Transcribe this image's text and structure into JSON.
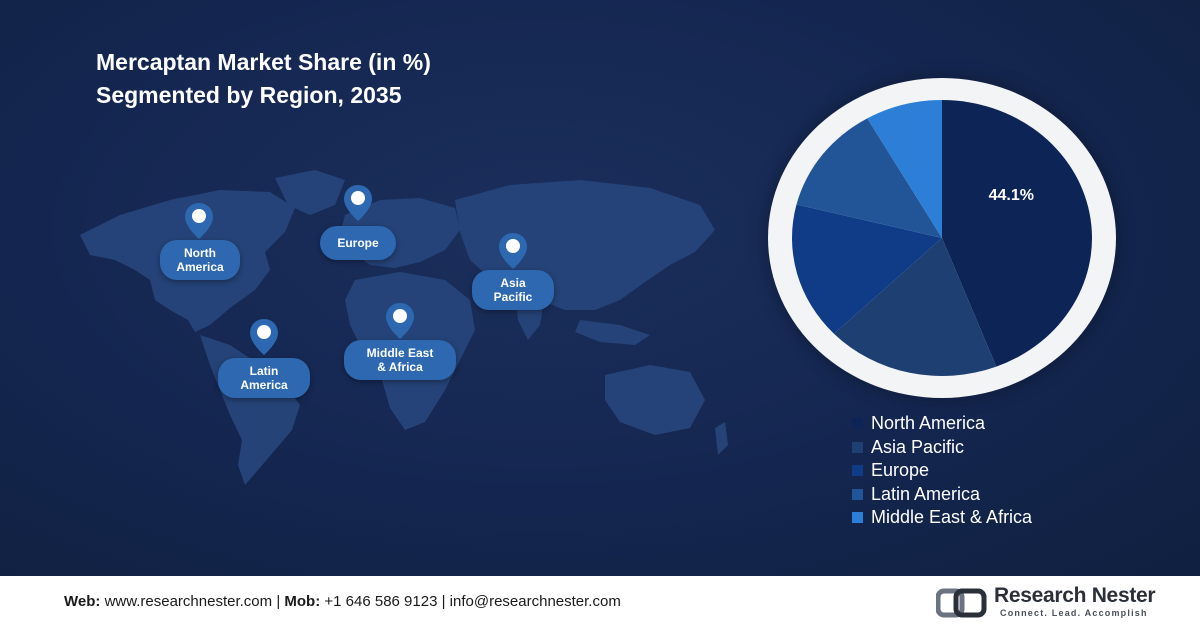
{
  "title": {
    "line1": "Mercaptan Market Share (in %)",
    "line2": "Segmented by Region, 2035"
  },
  "map": {
    "pins": [
      {
        "lines": [
          "North",
          "America"
        ]
      },
      {
        "lines": [
          "Europe"
        ]
      },
      {
        "lines": [
          "Asia",
          "Pacific"
        ]
      },
      {
        "lines": [
          "Latin",
          "America"
        ]
      },
      {
        "lines": [
          "Middle East",
          "& Africa"
        ]
      }
    ]
  },
  "chart_data": {
    "type": "pie",
    "title": "",
    "categories": [
      "North America",
      "Asia Pacific",
      "Europe",
      "Latin America",
      "Middle East & Africa"
    ],
    "values": [
      44.1,
      18.7,
      16.1,
      12.8,
      8.3
    ],
    "labels": [
      "44.1%",
      "",
      "",
      "",
      ""
    ],
    "colors": [
      "#0d2456",
      "#1d3f72",
      "#0f3b87",
      "#215597",
      "#2c7ed6"
    ],
    "legend_position": "bottom-right"
  },
  "footer": {
    "web_label": "Web:",
    "web_value": "www.researchnester.com",
    "sep1": "|",
    "mob_label": "Mob:",
    "mob_value": "+1 646 586 9123",
    "sep2": "|",
    "email": "info@researchnester.com"
  },
  "logo": {
    "name": "Research Nester",
    "tagline": "Connect. Lead. Accomplish"
  }
}
